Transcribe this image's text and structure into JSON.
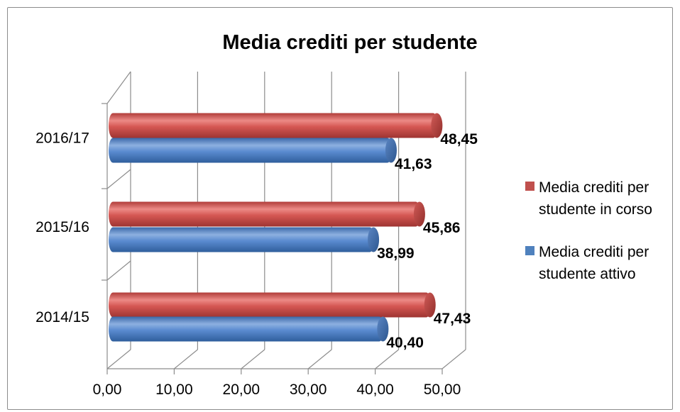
{
  "chart_data": {
    "type": "bar",
    "orientation": "horizontal",
    "style": "3d-cylinder",
    "title": "Media crediti per studente",
    "xlabel": "",
    "ylabel": "",
    "categories": [
      "2014/15",
      "2015/16",
      "2016/17"
    ],
    "series": [
      {
        "name": "Media crediti per studente attivo",
        "legend_lines": [
          "Media crediti per",
          "studente attivo"
        ],
        "color": "#4f81bd",
        "values": [
          40.4,
          38.99,
          41.63
        ],
        "labels": [
          "40,40",
          "38,99",
          "41,63"
        ]
      },
      {
        "name": "Media crediti per studente in corso",
        "legend_lines": [
          "Media crediti per",
          "studente in corso"
        ],
        "color": "#c0504d",
        "values": [
          47.43,
          45.86,
          48.45
        ],
        "labels": [
          "47,43",
          "45,86",
          "48,45"
        ]
      }
    ],
    "xlim": [
      0,
      50
    ],
    "x_ticks": [
      0,
      10,
      20,
      30,
      40,
      50
    ],
    "x_tick_labels": [
      "0,00",
      "10,00",
      "20,00",
      "30,00",
      "40,00",
      "50,00"
    ],
    "grid": true,
    "legend_position": "right"
  }
}
